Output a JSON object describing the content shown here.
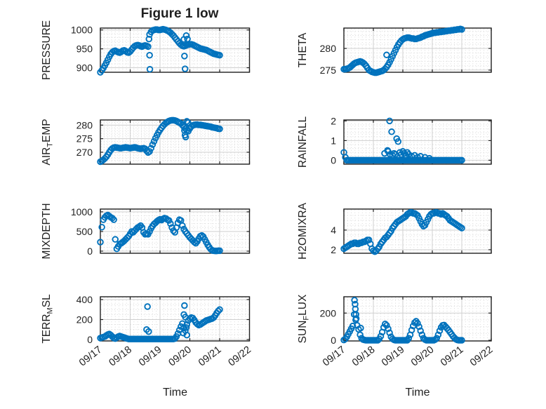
{
  "figure": {
    "title": "Figure 1 low",
    "marker_color": "#0072BD",
    "axis_color": "#1f1f1f",
    "grid_color": "#cfcfcf",
    "minor_grid_color": "#d9d9d9",
    "background": "#ffffff"
  },
  "x_axis": {
    "label": "Time",
    "tick_labels": [
      "09/17",
      "09/18",
      "09/19",
      "09/20",
      "09/21",
      "09/22"
    ],
    "range_days": [
      0,
      5
    ]
  },
  "chart_data": [
    {
      "name": "PRESSURE",
      "type": "scatter",
      "row": 0,
      "col": 0,
      "ylabel": "PRESSURE",
      "ylabel_parts": [
        {
          "t": "PRESSURE"
        }
      ],
      "yticks": [
        900,
        950,
        1000
      ],
      "ylim": [
        888,
        1005
      ],
      "yminor": 10,
      "x_start_day": 0,
      "dt_days": 0.05,
      "values": [
        888,
        893,
        899,
        906,
        913,
        921,
        929,
        936,
        941,
        944,
        945,
        943,
        941,
        940,
        942,
        945,
        946,
        944,
        941,
        940,
        943,
        948,
        953,
        957,
        959,
        960,
        959,
        957,
        956,
        958,
        959,
        958,
        956,
        988,
        995,
        999,
        1000,
        1001,
        1001,
        1000,
        1000,
        1001,
        1002,
        1001,
        1000,
        998,
        996,
        993,
        989,
        985,
        980,
        975,
        970,
        965,
        961,
        958,
        957,
        958,
        960,
        961,
        962,
        962,
        961,
        959,
        957,
        955,
        953,
        951,
        950,
        949,
        948,
        947,
        945,
        943,
        941,
        939,
        937,
        936,
        935,
        934,
        933
      ],
      "extra_points": [
        [
          1.63,
          976
        ],
        [
          1.65,
          933
        ],
        [
          1.66,
          896
        ],
        [
          2.8,
          975
        ],
        [
          2.82,
          931
        ],
        [
          2.84,
          897
        ],
        [
          2.88,
          985
        ],
        [
          2.92,
          976
        ]
      ]
    },
    {
      "name": "THETA",
      "type": "scatter",
      "row": 0,
      "col": 1,
      "ylabel": "THETA",
      "ylabel_parts": [
        {
          "t": "THETA"
        }
      ],
      "yticks": [
        275,
        280
      ],
      "ylim": [
        274.5,
        284.7
      ],
      "yminor": 1,
      "x_start_day": 0,
      "dt_days": 0.05,
      "values": [
        275.2,
        275.2,
        275.3,
        275.4,
        275.6,
        275.9,
        276.2,
        276.5,
        276.7,
        276.8,
        276.9,
        277.0,
        276.9,
        276.7,
        276.4,
        276.0,
        275.5,
        275.0,
        274.8,
        274.6,
        274.5,
        274.4,
        274.4,
        274.5,
        274.6,
        274.7,
        274.8,
        275.0,
        275.3,
        275.7,
        276.2,
        276.8,
        277.5,
        278.2,
        278.9,
        279.6,
        280.3,
        280.9,
        281.4,
        281.8,
        282.1,
        282.3,
        282.4,
        282.5,
        282.5,
        282.4,
        282.3,
        282.3,
        282.2,
        282.2,
        282.3,
        282.4,
        282.5,
        282.7,
        282.8,
        283.0,
        283.1,
        283.2,
        283.3,
        283.4,
        283.5,
        283.6,
        283.6,
        283.7,
        283.7,
        283.8,
        283.8,
        283.9,
        283.9,
        284.0,
        284.0,
        284.1,
        284.1,
        284.2,
        284.2,
        284.3,
        284.3,
        284.4,
        284.4,
        284.5,
        284.4
      ],
      "extra_points": [
        [
          1.45,
          278.5
        ]
      ]
    },
    {
      "name": "AIR_TEMP",
      "type": "scatter",
      "row": 1,
      "col": 0,
      "ylabel": "AIR_TEMP",
      "ylabel_parts": [
        {
          "t": "AIR"
        },
        {
          "t": "T",
          "sub": true
        },
        {
          "t": "EMP"
        }
      ],
      "yticks": [
        270,
        275,
        280
      ],
      "ylim": [
        265.6,
        281.9
      ],
      "yminor": 1,
      "x_start_day": 0,
      "dt_days": 0.05,
      "values": [
        266.5,
        266.8,
        267.2,
        267.7,
        268.3,
        269.1,
        270.0,
        270.8,
        271.4,
        271.7,
        271.8,
        271.7,
        271.6,
        271.5,
        271.5,
        271.6,
        271.7,
        271.8,
        271.7,
        271.6,
        271.5,
        271.6,
        271.7,
        271.8,
        271.7,
        271.5,
        271.4,
        271.3,
        271.4,
        271.5,
        271.3,
        270.5,
        269.9,
        270.3,
        271.5,
        272.8,
        274.0,
        275.2,
        276.3,
        277.3,
        278.2,
        279.0,
        279.7,
        280.3,
        280.8,
        281.2,
        281.5,
        281.7,
        281.8,
        281.8,
        281.7,
        281.5,
        281.2,
        280.9,
        280.6,
        280.0,
        279.4,
        278.7,
        278.1,
        277.8,
        278.8,
        279.5,
        279.9,
        280.1,
        280.2,
        280.2,
        280.1,
        280.1,
        280.0,
        279.9,
        279.8,
        279.7,
        279.6,
        279.5,
        279.4,
        279.2,
        279.1,
        279.0,
        278.9,
        278.7,
        278.6
      ],
      "extra_points": [
        [
          2.82,
          278.0
        ],
        [
          2.84,
          276.3
        ],
        [
          2.86,
          275.6
        ],
        [
          2.9,
          281.4
        ],
        [
          2.94,
          280.9
        ]
      ]
    },
    {
      "name": "RAINFALL",
      "type": "scatter",
      "row": 1,
      "col": 1,
      "ylabel": "RAINFALL",
      "ylabel_parts": [
        {
          "t": "RAINFALL"
        }
      ],
      "yticks": [
        0,
        1,
        2
      ],
      "ylim": [
        -0.2,
        2.05
      ],
      "yminor": 0.2,
      "x_start_day": 0,
      "dt_days": 0.05,
      "values": [
        0.4,
        0.15,
        0,
        0,
        0,
        0,
        0,
        0,
        0,
        0,
        0,
        0,
        0,
        0,
        0,
        0,
        0,
        0,
        0,
        0,
        0,
        0,
        0,
        0,
        0,
        0,
        0,
        0,
        0,
        0,
        0,
        0,
        0,
        0,
        0,
        0,
        0,
        0,
        0,
        0,
        0,
        0,
        0,
        0,
        0,
        0,
        0,
        0,
        0,
        0,
        0,
        0,
        0,
        0,
        0,
        0,
        0,
        0,
        0,
        0,
        0,
        0,
        0,
        0,
        0,
        0,
        0,
        0,
        0,
        0,
        0,
        0,
        0,
        0,
        0,
        0,
        0,
        0,
        0,
        0,
        0
      ],
      "extra_points": [
        [
          1.38,
          0.35
        ],
        [
          1.48,
          0.5
        ],
        [
          1.5,
          0.45
        ],
        [
          1.55,
          2.0
        ],
        [
          1.57,
          0.3
        ],
        [
          1.62,
          1.45
        ],
        [
          1.65,
          0.25
        ],
        [
          1.7,
          0.35
        ],
        [
          1.75,
          0.3
        ],
        [
          1.79,
          1.1
        ],
        [
          1.84,
          0.95
        ],
        [
          1.9,
          0.4
        ],
        [
          1.95,
          0.3
        ],
        [
          2.0,
          0.45
        ],
        [
          2.05,
          0.35
        ],
        [
          2.1,
          0.25
        ],
        [
          2.15,
          0.4
        ],
        [
          2.2,
          0.3
        ],
        [
          2.3,
          0.2
        ],
        [
          2.4,
          0.25
        ],
        [
          2.5,
          0.15
        ],
        [
          2.6,
          0.2
        ],
        [
          2.75,
          0.15
        ],
        [
          2.9,
          0.1
        ]
      ]
    },
    {
      "name": "MIXDEPTH",
      "type": "scatter",
      "row": 2,
      "col": 0,
      "ylabel": "MIXDEPTH",
      "ylabel_parts": [
        {
          "t": "MIXDEPTH"
        }
      ],
      "yticks": [
        0,
        500,
        1000
      ],
      "ylim": [
        -54,
        1071
      ],
      "yminor": 100,
      "x_start_day": 0,
      "dt_days": 0.05,
      "values": [
        230,
        610,
        800,
        860,
        900,
        920,
        890,
        860,
        840,
        800,
        300,
        60,
        120,
        180,
        200,
        230,
        260,
        300,
        340,
        380,
        440,
        500,
        480,
        520,
        560,
        600,
        620,
        650,
        600,
        480,
        430,
        440,
        430,
        500,
        580,
        640,
        690,
        720,
        760,
        790,
        810,
        790,
        820,
        840,
        830,
        800,
        780,
        700,
        600,
        520,
        480,
        600,
        720,
        800,
        780,
        650,
        560,
        500,
        450,
        400,
        350,
        310,
        270,
        230,
        200,
        250,
        320,
        380,
        400,
        370,
        300,
        230,
        160,
        100,
        50,
        20,
        10,
        5,
        5,
        10,
        10
      ],
      "extra_points": []
    },
    {
      "name": "H2OMIXRA",
      "type": "scatter",
      "row": 2,
      "col": 1,
      "ylabel": "H2OMIXRA",
      "ylabel_parts": [
        {
          "t": "H2OMIXRA"
        }
      ],
      "yticks": [
        2,
        4
      ],
      "ylim": [
        1.64,
        6.14
      ],
      "yminor": 0.5,
      "x_start_day": 0,
      "dt_days": 0.05,
      "values": [
        2.1,
        2.2,
        2.3,
        2.4,
        2.5,
        2.6,
        2.6,
        2.7,
        2.7,
        2.6,
        2.6,
        2.7,
        2.7,
        2.8,
        2.8,
        2.9,
        3.0,
        3.0,
        2.6,
        2.1,
        1.9,
        1.8,
        1.9,
        2.1,
        2.3,
        2.6,
        2.8,
        3.0,
        3.2,
        3.3,
        3.5,
        3.7,
        3.9,
        4.2,
        4.4,
        4.6,
        4.8,
        4.9,
        5.0,
        5.1,
        5.2,
        5.3,
        5.4,
        5.6,
        5.7,
        5.8,
        5.8,
        5.7,
        5.7,
        5.6,
        5.5,
        5.2,
        4.9,
        4.6,
        4.4,
        4.5,
        4.8,
        5.1,
        5.4,
        5.6,
        5.7,
        5.7,
        5.8,
        5.8,
        5.7,
        5.7,
        5.6,
        5.7,
        5.6,
        5.5,
        5.4,
        5.2,
        5.0,
        4.9,
        4.8,
        4.7,
        4.6,
        4.5,
        4.4,
        4.3,
        4.2
      ],
      "extra_points": []
    },
    {
      "name": "TERR_MSL",
      "type": "scatter",
      "row": 3,
      "col": 0,
      "ylabel": "TERR_MSL",
      "ylabel_parts": [
        {
          "t": "TERR"
        },
        {
          "t": "M",
          "sub": true
        },
        {
          "t": "SL"
        }
      ],
      "yticks": [
        0,
        200,
        400
      ],
      "ylim": [
        -14,
        428
      ],
      "yminor": 50,
      "x_start_day": 0,
      "dt_days": 0.05,
      "values": [
        15,
        20,
        25,
        30,
        40,
        50,
        55,
        45,
        30,
        15,
        10,
        20,
        30,
        35,
        30,
        25,
        20,
        15,
        10,
        5,
        5,
        5,
        5,
        5,
        5,
        5,
        5,
        5,
        5,
        5,
        5,
        5,
        5,
        5,
        5,
        5,
        5,
        5,
        5,
        5,
        5,
        5,
        5,
        5,
        5,
        5,
        5,
        5,
        5,
        5,
        10,
        30,
        60,
        95,
        130,
        160,
        120,
        90,
        150,
        190,
        210,
        220,
        215,
        195,
        170,
        155,
        145,
        150,
        160,
        170,
        180,
        190,
        195,
        200,
        205,
        210,
        220,
        240,
        265,
        285,
        300
      ],
      "extra_points": [
        [
          1.55,
          100
        ],
        [
          1.58,
          330
        ],
        [
          1.62,
          80
        ],
        [
          2.78,
          65
        ],
        [
          2.8,
          250
        ],
        [
          2.82,
          340
        ],
        [
          2.85,
          225
        ],
        [
          2.88,
          120
        ],
        [
          2.9,
          45
        ]
      ]
    },
    {
      "name": "SUN_FLUX",
      "type": "scatter",
      "row": 3,
      "col": 1,
      "ylabel": "SUN_FLUX",
      "ylabel_parts": [
        {
          "t": "SUN"
        },
        {
          "t": "F",
          "sub": true
        },
        {
          "t": "LUX"
        }
      ],
      "yticks": [
        0,
        200
      ],
      "ylim": [
        -5,
        320
      ],
      "yminor": 50,
      "x_start_day": 0,
      "dt_days": 0.05,
      "values": [
        2,
        10,
        25,
        45,
        65,
        85,
        105,
        190,
        150,
        110,
        80,
        40,
        15,
        5,
        2,
        0,
        0,
        0,
        0,
        0,
        0,
        0,
        0,
        0,
        10,
        30,
        60,
        95,
        120,
        110,
        85,
        55,
        25,
        10,
        3,
        0,
        0,
        0,
        0,
        0,
        0,
        0,
        0,
        0,
        15,
        40,
        75,
        105,
        130,
        140,
        125,
        100,
        70,
        40,
        15,
        5,
        0,
        0,
        0,
        0,
        0,
        0,
        5,
        15,
        40,
        70,
        95,
        110,
        112,
        100,
        88,
        75,
        60,
        45,
        30,
        18,
        8,
        2,
        0,
        0,
        0
      ],
      "extra_points": [
        [
          0.36,
          295
        ],
        [
          0.38,
          265
        ],
        [
          0.39,
          230
        ],
        [
          0.41,
          190
        ],
        [
          0.42,
          160
        ],
        [
          0.57,
          90
        ]
      ]
    }
  ]
}
